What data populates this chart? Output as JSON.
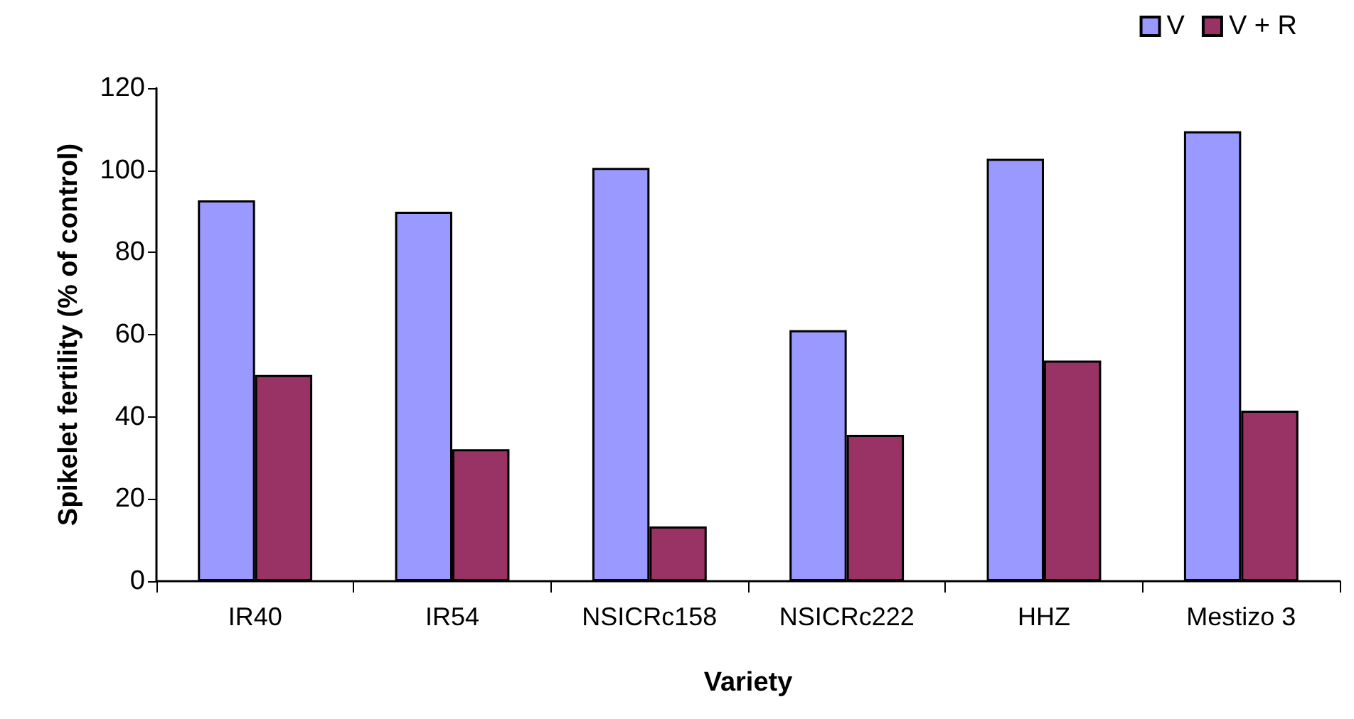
{
  "chart_data": {
    "type": "bar",
    "xlabel": "Variety",
    "ylabel": "Spikelet fertility (% of control)",
    "categories": [
      "IR40",
      "IR54",
      "NSICRc158",
      "NSICRc222",
      "HHZ",
      "Mestizo 3"
    ],
    "series": [
      {
        "name": "V",
        "color": "#9999ff",
        "values": [
          92.7,
          89.9,
          100.6,
          61.1,
          102.8,
          109.5
        ]
      },
      {
        "name": "V + R",
        "color": "#993366",
        "values": [
          50.2,
          32.1,
          13.3,
          35.6,
          53.7,
          41.5
        ]
      }
    ],
    "ylim": [
      0,
      120
    ],
    "yticks": [
      0,
      20,
      40,
      60,
      80,
      100,
      120
    ],
    "grid": false,
    "legend": "top right"
  }
}
